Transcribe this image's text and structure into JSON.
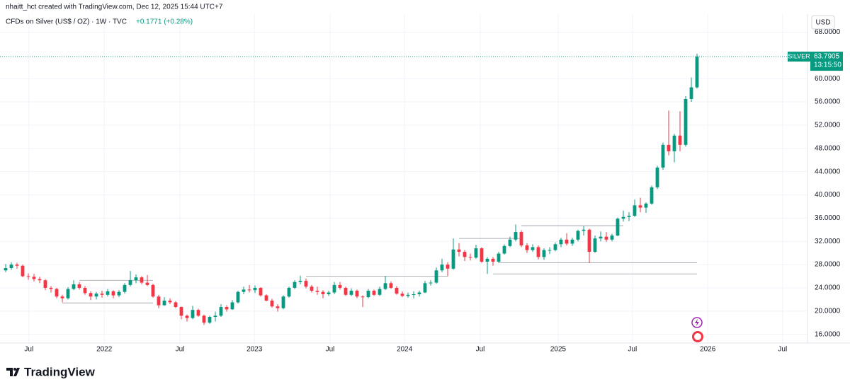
{
  "header": {
    "credit": "nhaitt_hct created with TradingView.com, Dec 12, 2025 15:44 UTC+7",
    "symbol": "CFDs on Silver (US$ / OZ) · 1W · TVC",
    "change": "+0.1771 (+0.28%)"
  },
  "chart_data": {
    "type": "candlestick",
    "currency": "USD",
    "ticker": "SILVER",
    "last_price": 63.7905,
    "countdown": "13:15:50",
    "up_color": "#089981",
    "down_color": "#f23645",
    "level_color": "#9598a1",
    "xlim": [
      -1,
      141.5
    ],
    "ylim": [
      14.5,
      71.1
    ],
    "xticks": [
      {
        "value": 4.1,
        "label": "Jul"
      },
      {
        "value": 17.4,
        "label": "2022"
      },
      {
        "value": 30.75,
        "label": "Jul"
      },
      {
        "value": 43.9,
        "label": "2023"
      },
      {
        "value": 57.25,
        "label": "Jul"
      },
      {
        "value": 70.4,
        "label": "2024"
      },
      {
        "value": 83.75,
        "label": "Jul"
      },
      {
        "value": 97.5,
        "label": "2025"
      },
      {
        "value": 110.6,
        "label": "Jul"
      },
      {
        "value": 123.9,
        "label": "2026"
      },
      {
        "value": 137.1,
        "label": "Jul"
      }
    ],
    "yticks": [
      {
        "value": 16,
        "label": "16.0000"
      },
      {
        "value": 20,
        "label": "20.0000"
      },
      {
        "value": 24,
        "label": "24.0000"
      },
      {
        "value": 28,
        "label": "28.0000"
      },
      {
        "value": 32,
        "label": "32.0000"
      },
      {
        "value": 36,
        "label": "36.0000"
      },
      {
        "value": 40,
        "label": "40.0000"
      },
      {
        "value": 44,
        "label": "44.0000"
      },
      {
        "value": 48,
        "label": "48.0000"
      },
      {
        "value": 52,
        "label": "52.0000"
      },
      {
        "value": 56,
        "label": "56.0000"
      },
      {
        "value": 60,
        "label": "60.0000"
      },
      {
        "value": 68,
        "label": "68.0000"
      }
    ],
    "grid": true,
    "levels": [
      {
        "price": 25.3,
        "from": 13,
        "to": 26
      },
      {
        "price": 21.4,
        "from": 10,
        "to": 26
      },
      {
        "price": 26.0,
        "from": 53,
        "to": 78
      },
      {
        "price": 32.5,
        "from": 80,
        "to": 91
      },
      {
        "price": 34.7,
        "from": 91,
        "to": 109
      },
      {
        "price": 28.3,
        "from": 87,
        "to": 122
      },
      {
        "price": 26.4,
        "from": 86,
        "to": 122
      }
    ],
    "candles": [
      [
        27.0,
        28.1,
        26.7,
        27.4
      ],
      [
        27.4,
        28.4,
        27.1,
        28.0
      ],
      [
        28.0,
        28.3,
        27.3,
        27.8
      ],
      [
        27.8,
        28.0,
        25.8,
        26.0
      ],
      [
        26.0,
        26.5,
        25.4,
        25.9
      ],
      [
        25.9,
        26.4,
        25.1,
        25.5
      ],
      [
        25.5,
        25.9,
        24.8,
        25.3
      ],
      [
        25.3,
        25.5,
        23.6,
        24.0
      ],
      [
        24.0,
        24.3,
        23.2,
        23.8
      ],
      [
        23.8,
        24.0,
        22.2,
        22.5
      ],
      [
        22.5,
        22.8,
        21.5,
        22.2
      ],
      [
        22.2,
        24.1,
        22.0,
        23.8
      ],
      [
        23.8,
        25.3,
        23.6,
        24.6
      ],
      [
        24.6,
        25.0,
        23.7,
        24.0
      ],
      [
        24.0,
        24.3,
        22.8,
        23.1
      ],
      [
        23.1,
        23.4,
        21.9,
        22.5
      ],
      [
        22.5,
        23.3,
        22.0,
        23.0
      ],
      [
        23.0,
        23.5,
        22.3,
        22.8
      ],
      [
        22.8,
        23.8,
        22.5,
        23.4
      ],
      [
        23.4,
        23.6,
        22.2,
        22.7
      ],
      [
        22.7,
        23.6,
        22.4,
        23.3
      ],
      [
        23.3,
        24.8,
        23.0,
        24.5
      ],
      [
        24.5,
        26.9,
        24.2,
        25.3
      ],
      [
        25.3,
        26.3,
        24.8,
        25.8
      ],
      [
        25.8,
        26.0,
        24.6,
        24.9
      ],
      [
        24.9,
        26.2,
        24.3,
        24.5
      ],
      [
        24.5,
        24.7,
        22.3,
        22.5
      ],
      [
        22.5,
        22.8,
        20.5,
        21.0
      ],
      [
        21.0,
        22.4,
        20.9,
        21.8
      ],
      [
        21.8,
        22.2,
        21.2,
        21.5
      ],
      [
        21.5,
        21.7,
        20.5,
        20.7
      ],
      [
        20.7,
        20.8,
        18.6,
        19.2
      ],
      [
        19.2,
        19.4,
        18.2,
        18.8
      ],
      [
        18.8,
        20.9,
        18.6,
        20.2
      ],
      [
        20.2,
        20.4,
        19.0,
        19.2
      ],
      [
        19.2,
        19.4,
        17.6,
        18.0
      ],
      [
        18.0,
        19.2,
        17.8,
        19.0
      ],
      [
        19.0,
        19.9,
        18.2,
        19.2
      ],
      [
        19.2,
        21.2,
        19.0,
        20.7
      ],
      [
        20.7,
        21.0,
        19.9,
        20.3
      ],
      [
        20.3,
        21.9,
        20.2,
        21.5
      ],
      [
        21.5,
        23.5,
        21.3,
        23.3
      ],
      [
        23.3,
        24.2,
        22.9,
        23.7
      ],
      [
        23.7,
        24.5,
        23.2,
        23.6
      ],
      [
        23.6,
        24.4,
        23.1,
        24.0
      ],
      [
        24.0,
        24.1,
        22.5,
        22.7
      ],
      [
        22.7,
        22.9,
        21.7,
        21.8
      ],
      [
        21.8,
        22.1,
        20.6,
        20.8
      ],
      [
        20.8,
        21.2,
        19.9,
        20.5
      ],
      [
        20.5,
        22.7,
        20.3,
        22.5
      ],
      [
        22.5,
        24.2,
        22.3,
        24.0
      ],
      [
        24.0,
        25.3,
        23.8,
        25.0
      ],
      [
        25.0,
        26.1,
        24.6,
        25.2
      ],
      [
        25.2,
        25.6,
        23.9,
        24.2
      ],
      [
        24.2,
        24.5,
        23.2,
        23.5
      ],
      [
        23.5,
        24.2,
        22.8,
        23.3
      ],
      [
        23.3,
        23.6,
        22.2,
        22.9
      ],
      [
        22.9,
        23.5,
        22.6,
        23.2
      ],
      [
        23.2,
        25.0,
        22.9,
        24.5
      ],
      [
        24.5,
        25.0,
        23.7,
        24.0
      ],
      [
        24.0,
        24.2,
        22.6,
        22.8
      ],
      [
        22.8,
        23.9,
        22.6,
        23.5
      ],
      [
        23.5,
        23.7,
        22.2,
        22.5
      ],
      [
        22.5,
        22.7,
        20.7,
        22.4
      ],
      [
        22.4,
        23.8,
        22.2,
        23.5
      ],
      [
        23.5,
        23.7,
        22.6,
        22.8
      ],
      [
        22.8,
        24.2,
        22.6,
        23.8
      ],
      [
        23.8,
        26.0,
        23.6,
        24.8
      ],
      [
        24.8,
        25.1,
        23.8,
        24.0
      ],
      [
        24.0,
        24.3,
        22.8,
        23.0
      ],
      [
        23.0,
        23.4,
        22.4,
        22.6
      ],
      [
        22.6,
        23.2,
        22.3,
        22.8
      ],
      [
        22.8,
        23.4,
        22.2,
        22.9
      ],
      [
        22.9,
        23.5,
        22.5,
        23.2
      ],
      [
        23.2,
        25.2,
        23.1,
        24.8
      ],
      [
        24.8,
        25.3,
        24.4,
        24.9
      ],
      [
        24.9,
        27.5,
        24.7,
        27.0
      ],
      [
        27.0,
        29.0,
        26.7,
        28.0
      ],
      [
        28.0,
        28.4,
        26.0,
        27.3
      ],
      [
        27.3,
        32.5,
        27.1,
        30.6
      ],
      [
        30.6,
        31.7,
        29.4,
        30.2
      ],
      [
        30.2,
        30.5,
        28.6,
        29.3
      ],
      [
        29.3,
        29.9,
        28.7,
        29.2
      ],
      [
        29.2,
        31.4,
        29.0,
        30.8
      ],
      [
        30.8,
        31.0,
        28.3,
        28.5
      ],
      [
        28.5,
        29.3,
        26.4,
        29.0
      ],
      [
        29.0,
        29.3,
        27.8,
        28.5
      ],
      [
        28.5,
        30.2,
        28.3,
        29.9
      ],
      [
        29.9,
        31.5,
        29.7,
        31.2
      ],
      [
        31.2,
        32.8,
        31.0,
        32.3
      ],
      [
        32.3,
        34.9,
        32.0,
        33.6
      ],
      [
        33.6,
        33.9,
        31.0,
        31.3
      ],
      [
        31.3,
        31.7,
        30.0,
        30.5
      ],
      [
        30.5,
        31.5,
        30.2,
        31.0
      ],
      [
        31.0,
        31.3,
        28.9,
        29.3
      ],
      [
        29.3,
        30.8,
        28.8,
        30.5
      ],
      [
        30.5,
        31.0,
        29.8,
        30.5
      ],
      [
        30.5,
        31.8,
        30.3,
        31.5
      ],
      [
        31.5,
        32.6,
        31.0,
        32.3
      ],
      [
        32.3,
        33.4,
        31.3,
        31.6
      ],
      [
        31.6,
        32.6,
        31.2,
        32.3
      ],
      [
        32.3,
        34.0,
        32.0,
        33.8
      ],
      [
        33.8,
        34.6,
        33.0,
        34.0
      ],
      [
        34.0,
        34.2,
        28.3,
        30.2
      ],
      [
        30.2,
        33.0,
        30.0,
        32.5
      ],
      [
        32.5,
        33.7,
        32.0,
        32.8
      ],
      [
        32.8,
        33.6,
        31.9,
        32.3
      ],
      [
        32.3,
        33.3,
        32.0,
        33.0
      ],
      [
        33.0,
        36.1,
        32.9,
        35.9
      ],
      [
        35.9,
        37.3,
        35.4,
        36.2
      ],
      [
        36.2,
        37.0,
        35.5,
        36.4
      ],
      [
        36.4,
        39.2,
        36.2,
        38.2
      ],
      [
        38.2,
        39.5,
        37.0,
        37.8
      ],
      [
        37.8,
        38.7,
        36.9,
        38.5
      ],
      [
        38.5,
        41.6,
        38.3,
        41.3
      ],
      [
        41.3,
        45.0,
        41.0,
        44.7
      ],
      [
        44.7,
        49.0,
        44.3,
        48.6
      ],
      [
        48.6,
        54.5,
        46.8,
        47.5
      ],
      [
        47.5,
        50.5,
        45.6,
        50.2
      ],
      [
        50.2,
        54.4,
        47.5,
        48.6
      ],
      [
        48.6,
        57.0,
        48.3,
        56.5
      ],
      [
        56.5,
        60.2,
        56.0,
        58.5
      ],
      [
        58.5,
        64.3,
        58.3,
        63.7905
      ]
    ]
  },
  "footer": {
    "brand": "TradingView"
  }
}
